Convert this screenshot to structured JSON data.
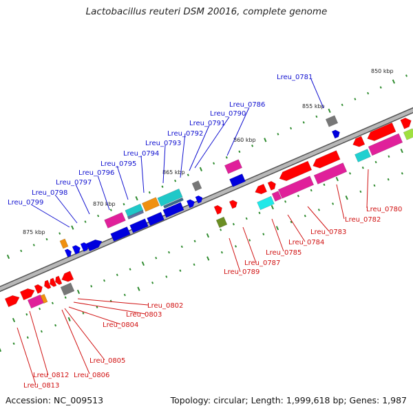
{
  "title": "Lactobacillus reuteri DSM 20016, complete genome",
  "footer": {
    "accession": "Accession: NC_009513",
    "summary": "Topology: circular; Length: 1,999,618 bp; Genes: 1,987"
  },
  "colors": {
    "backbone": "#a8a8a8",
    "label_top": "#1010d0",
    "label_bottom": "#d01010",
    "tick": "#2e8b2e"
  },
  "position_labels": [
    "850 kbp",
    "855 kbp",
    "860 kbp",
    "865 kbp",
    "870 kbp",
    "875 kbp"
  ],
  "gene_labels_top": [
    "Lreu_0781",
    "Lreu_0786",
    "Lreu_0790",
    "Lreu_0791",
    "Lreu_0792",
    "Lreu_0793",
    "Lreu_0794",
    "Lreu_0795",
    "Lreu_0796",
    "Lreu_0797",
    "Lreu_0798",
    "Lreu_0799"
  ],
  "gene_labels_bottom": [
    "Lreu_0780",
    "Lreu_0782",
    "Lreu_0783",
    "Lreu_0784",
    "Lreu_0785",
    "Lreu_0787",
    "Lreu_0789",
    "Lreu_0802",
    "Lreu_0803",
    "Lreu_0804",
    "Lreu_0805",
    "Lreu_0806",
    "Lreu_0812",
    "Lreu_0813"
  ]
}
